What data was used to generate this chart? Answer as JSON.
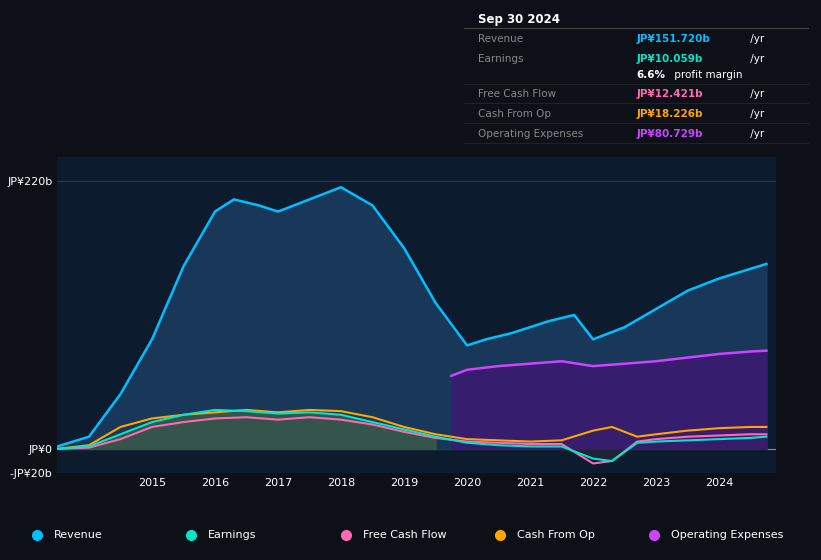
{
  "bg_color": "#0d1117",
  "plot_bg_color": "#0d1b2e",
  "info_box_bg": "#080c10",
  "info_box_title": "Sep 30 2024",
  "info_rows": [
    {
      "label": "Revenue",
      "value": "JP¥151.720b",
      "suffix": " /yr",
      "color": "#00bfff"
    },
    {
      "label": "Earnings",
      "value": "JP¥10.059b",
      "suffix": " /yr",
      "color": "#00e5cc"
    },
    {
      "label": "",
      "value": "6.6%",
      "suffix": " profit margin",
      "color": "#ffffff"
    },
    {
      "label": "Free Cash Flow",
      "value": "JP¥12.421b",
      "suffix": " /yr",
      "color": "#ff69b4"
    },
    {
      "label": "Cash From Op",
      "value": "JP¥18.226b",
      "suffix": " /yr",
      "color": "#ffa500"
    },
    {
      "label": "Operating Expenses",
      "value": "JP¥80.729b",
      "suffix": " /yr",
      "color": "#cc44ff"
    }
  ],
  "ylim": [
    -20,
    240
  ],
  "yticks": [
    -20,
    0,
    220
  ],
  "ytick_labels": [
    "-JP¥20b",
    "JP¥0",
    "JP¥220b"
  ],
  "xticks": [
    2015,
    2016,
    2017,
    2018,
    2019,
    2020,
    2021,
    2022,
    2023,
    2024
  ],
  "xlim": [
    2013.5,
    2024.9
  ],
  "colors": {
    "revenue": "#00bfff",
    "earnings": "#00e5cc",
    "fcf": "#ff69b4",
    "cashfromop": "#ffa500",
    "opex": "#cc44ff",
    "revenue_fill": "#1a3a5c",
    "earnings_fill_left": "#3a5a4a",
    "earnings_fill_right": "#2a2a3a",
    "opex_fill": "#3a1a70"
  },
  "revenue_x": [
    2013.5,
    2014.0,
    2014.5,
    2015.0,
    2015.5,
    2016.0,
    2016.3,
    2016.7,
    2017.0,
    2017.5,
    2018.0,
    2018.5,
    2019.0,
    2019.5,
    2020.0,
    2020.3,
    2020.7,
    2021.0,
    2021.3,
    2021.7,
    2022.0,
    2022.5,
    2023.0,
    2023.5,
    2024.0,
    2024.5,
    2024.75
  ],
  "revenue_y": [
    2,
    10,
    45,
    90,
    150,
    195,
    205,
    200,
    195,
    205,
    215,
    200,
    165,
    120,
    85,
    90,
    95,
    100,
    105,
    110,
    90,
    100,
    115,
    130,
    140,
    148,
    152
  ],
  "earnings_x": [
    2013.5,
    2014.0,
    2014.5,
    2015.0,
    2015.5,
    2016.0,
    2016.5,
    2017.0,
    2017.5,
    2018.0,
    2018.5,
    2019.0,
    2019.5,
    2020.0,
    2020.5,
    2021.0,
    2021.5,
    2022.0,
    2022.3,
    2022.7,
    2023.0,
    2023.5,
    2024.0,
    2024.5,
    2024.75
  ],
  "earnings_y": [
    0,
    2,
    12,
    22,
    28,
    32,
    31,
    29,
    30,
    28,
    22,
    16,
    10,
    5,
    3,
    2,
    2,
    -8,
    -10,
    5,
    6,
    7,
    8,
    9,
    10
  ],
  "fcf_x": [
    2013.5,
    2014.0,
    2014.5,
    2015.0,
    2015.5,
    2016.0,
    2016.5,
    2017.0,
    2017.5,
    2018.0,
    2018.5,
    2019.0,
    2019.5,
    2020.0,
    2020.5,
    2021.0,
    2021.5,
    2022.0,
    2022.3,
    2022.7,
    2023.0,
    2023.5,
    2024.0,
    2024.5,
    2024.75
  ],
  "fcf_y": [
    0,
    1,
    8,
    18,
    22,
    25,
    26,
    24,
    26,
    24,
    20,
    14,
    9,
    6,
    5,
    4,
    4,
    -12,
    -10,
    6,
    8,
    10,
    11,
    12,
    12
  ],
  "cashfromop_x": [
    2013.5,
    2014.0,
    2014.5,
    2015.0,
    2015.5,
    2016.0,
    2016.5,
    2017.0,
    2017.5,
    2018.0,
    2018.5,
    2019.0,
    2019.5,
    2020.0,
    2020.5,
    2021.0,
    2021.5,
    2022.0,
    2022.3,
    2022.7,
    2023.0,
    2023.5,
    2024.0,
    2024.5,
    2024.75
  ],
  "cashfromop_y": [
    0,
    3,
    18,
    25,
    28,
    30,
    32,
    30,
    32,
    31,
    26,
    18,
    12,
    8,
    7,
    6,
    7,
    15,
    18,
    10,
    12,
    15,
    17,
    18,
    18
  ],
  "opex_x": [
    2019.75,
    2020.0,
    2020.5,
    2021.0,
    2021.5,
    2022.0,
    2022.5,
    2023.0,
    2023.5,
    2024.0,
    2024.5,
    2024.75
  ],
  "opex_y": [
    60,
    65,
    68,
    70,
    72,
    68,
    70,
    72,
    75,
    78,
    80,
    80.7
  ],
  "legend": [
    {
      "label": "Revenue",
      "color": "#00bfff"
    },
    {
      "label": "Earnings",
      "color": "#00e5cc"
    },
    {
      "label": "Free Cash Flow",
      "color": "#ff69b4"
    },
    {
      "label": "Cash From Op",
      "color": "#ffa500"
    },
    {
      "label": "Operating Expenses",
      "color": "#cc44ff"
    }
  ]
}
